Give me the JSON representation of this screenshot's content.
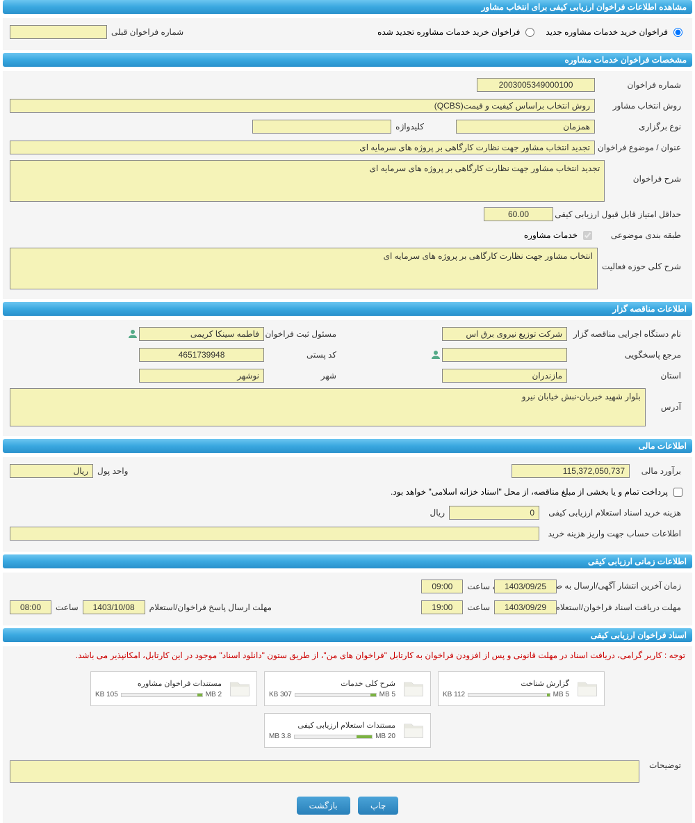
{
  "header": {
    "title": "مشاهده اطلاعات فراخوان ارزیابی کیفی برای انتخاب مشاور"
  },
  "top": {
    "radio_new": "فراخوان خرید خدمات مشاوره جدید",
    "radio_renewed": "فراخوان خرید خدمات مشاوره تجدید شده",
    "prev_number_label": "شماره فراخوان قبلی"
  },
  "spec": {
    "section_title": "مشخصات فراخوان خدمات مشاوره",
    "call_number_label": "شماره فراخوان",
    "call_number": "2003005349000100",
    "method_label": "روش انتخاب مشاور",
    "method": "روش انتخاب براساس کیفیت و قیمت(QCBS)",
    "type_label": "نوع برگزاری",
    "type": "همزمان",
    "keyword_label": "کلیدواژه",
    "subject_label": "عنوان / موضوع فراخوان",
    "subject": "تجدید انتخاب مشاور جهت نظارت کارگاهی بر پروژه های سرمایه ای",
    "desc_label": "شرح فراخوان",
    "desc": "تجدید انتخاب مشاور جهت نظارت کارگاهی بر پروژه های سرمایه ای",
    "min_score_label": "حداقل امتیاز قابل قبول ارزیابی کیفی",
    "min_score": "60.00",
    "category_label": "طبقه بندی موضوعی",
    "category_check": "خدمات مشاوره",
    "activity_label": "شرح کلی حوزه فعالیت",
    "activity": "انتخاب مشاور جهت نظارت کارگاهی بر پروژه های سرمایه ای"
  },
  "org": {
    "section_title": "اطلاعات مناقصه گزار",
    "exec_label": "نام دستگاه اجرایی مناقصه گزار",
    "exec": "شرکت توزیع نیروی برق اس",
    "registrar_label": "مسئول ثبت فراخوان",
    "registrar": "فاطمه  سینکا کریمی",
    "replier_label": "مرجع پاسخگویی",
    "postal_label": "کد پستی",
    "postal": "4651739948",
    "province_label": "استان",
    "province": "مازندران",
    "city_label": "شهر",
    "city": "نوشهر",
    "address_label": "آدرس",
    "address": "بلوار شهید خیریان-نبش خیابان نیرو"
  },
  "finance": {
    "section_title": "اطلاعات مالی",
    "estimate_label": "برآورد مالی",
    "estimate": "115,372,050,737",
    "unit_label": "واحد پول",
    "unit": "ریال",
    "treasury_check": "پرداخت تمام و یا بخشی از مبلغ مناقصه، از محل \"اسناد خزانه اسلامی\" خواهد بود.",
    "doc_fee_label": "هزینه خرید اسناد استعلام ارزیابی کیفی",
    "doc_fee": "0",
    "doc_fee_unit": "ریال",
    "account_label": "اطلاعات حساب جهت واریز هزینه خرید"
  },
  "time": {
    "section_title": "اطلاعات زمانی ارزیابی کیفی",
    "pub_label": "زمان آخرین انتشار آگهی/ارسال به صفحه اعلان عمومی",
    "pub_date": "1403/09/25",
    "hour_label": "ساعت",
    "pub_hour": "09:00",
    "receive_label": "مهلت دریافت اسناد فراخوان/استعلام",
    "receive_date": "1403/09/29",
    "receive_hour": "19:00",
    "reply_label": "مهلت ارسال پاسخ فراخوان/استعلام",
    "reply_date": "1403/10/08",
    "reply_hour": "08:00"
  },
  "docs": {
    "section_title": "اسناد فراخوان ارزیابی کیفی",
    "notice": "توجه : کاربر گرامی، دریافت اسناد در مهلت قانونی و پس از افزودن فراخوان به کارتابل \"فراخوان های من\"، از طریق ستون \"دانلود اسناد\" موجود در این کارتابل، امکانپذیر می باشد.",
    "files": [
      {
        "name": "گزارش شناخت",
        "used": "112 KB",
        "total": "5 MB",
        "pct": 3
      },
      {
        "name": "شرح کلی خدمات",
        "used": "307 KB",
        "total": "5 MB",
        "pct": 7
      },
      {
        "name": "مستندات فراخوان مشاوره",
        "used": "105 KB",
        "total": "2 MB",
        "pct": 6
      },
      {
        "name": "مستندات استعلام ارزیابی کیفی",
        "used": "3.8 MB",
        "total": "20 MB",
        "pct": 20
      }
    ],
    "desc_label": "توضیحات"
  },
  "buttons": {
    "print": "چاپ",
    "back": "بازگشت"
  }
}
